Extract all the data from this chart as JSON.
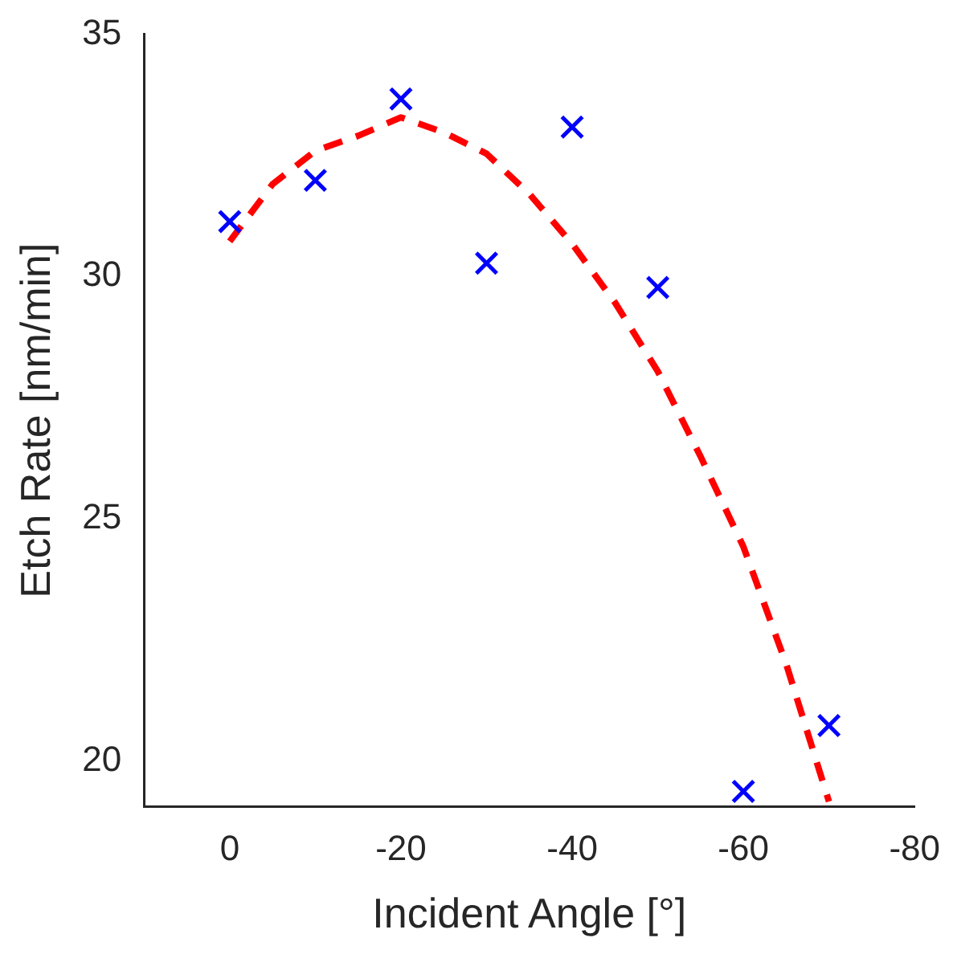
{
  "chart_data": {
    "type": "scatter",
    "xlabel": "Incident Angle [°]",
    "ylabel": "Etch Rate [nm/min]",
    "xlim": [
      10,
      -80
    ],
    "xticks": [
      0,
      -20,
      -40,
      -60,
      -80
    ],
    "ylim": [
      19.05,
      35
    ],
    "yticks": [
      20,
      25,
      30,
      35
    ],
    "legend": false,
    "series": [
      {
        "type": "scatter",
        "color": "#0000ff",
        "marker": "cross",
        "x": [
          0,
          -10,
          -20,
          -30,
          -40,
          -50,
          -60,
          -70
        ],
        "values": [
          31.13,
          31.98,
          33.66,
          30.27,
          33.08,
          29.77,
          19.37,
          20.73
        ]
      },
      {
        "type": "line",
        "color": "#ff0000",
        "marker": "none",
        "line_style": "dashed",
        "x": [
          0,
          -5,
          -10,
          -15,
          -20,
          -25,
          -30,
          -35,
          -40,
          -45,
          -50,
          -55,
          -60,
          -65,
          -70
        ],
        "values": [
          30.72,
          31.9,
          32.59,
          32.9,
          33.28,
          32.97,
          32.53,
          31.7,
          30.67,
          29.46,
          28.04,
          26.28,
          24.42,
          22.0,
          19.16
        ]
      }
    ]
  }
}
